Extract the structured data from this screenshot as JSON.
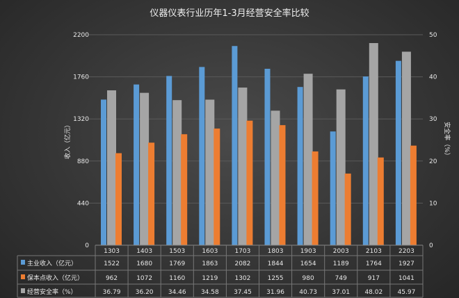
{
  "chart_data": {
    "type": "bar",
    "title": "仪器仪表行业历年1-3月经营安全率比较",
    "categories": [
      "1303",
      "1403",
      "1503",
      "1603",
      "1703",
      "1803",
      "1903",
      "2003",
      "2103",
      "2203"
    ],
    "ylabel": "收入（亿元）",
    "y2label": "安全率（%）",
    "ylim": [
      0,
      2200
    ],
    "y2lim": [
      0,
      50
    ],
    "yticks": [
      0,
      440,
      880,
      1320,
      1760,
      2200
    ],
    "y2ticks": [
      0,
      10,
      20,
      30,
      40,
      50
    ],
    "grid": true,
    "legend": "data-table-bottom",
    "series": [
      {
        "name": "主业收入（亿元）",
        "axis": "left",
        "color": "#5b9bd5",
        "values": [
          1522,
          1680,
          1769,
          1863,
          2082,
          1844,
          1654,
          1189,
          1764,
          1927
        ],
        "labels": [
          "1522",
          "1680",
          "1769",
          "1863",
          "2082",
          "1844",
          "1654",
          "1189",
          "1764",
          "1927"
        ]
      },
      {
        "name": "经营安全率（%）",
        "axis": "right",
        "color": "#a5a5a5",
        "values": [
          36.79,
          36.2,
          34.46,
          34.58,
          37.45,
          31.96,
          40.73,
          37.01,
          48.02,
          45.97
        ],
        "labels": [
          "36.79",
          "36.20",
          "34.46",
          "34.58",
          "37.45",
          "31.96",
          "40.73",
          "37.01",
          "48.02",
          "45.97"
        ]
      },
      {
        "name": "保本点收入（亿元）",
        "axis": "left",
        "color": "#ed7d31",
        "values": [
          962,
          1072,
          1160,
          1219,
          1302,
          1255,
          980,
          749,
          917,
          1041
        ],
        "labels": [
          "962",
          "1072",
          "1160",
          "1219",
          "1302",
          "1255",
          "980",
          "749",
          "917",
          "1041"
        ]
      }
    ],
    "table_order": [
      0,
      2,
      1
    ]
  }
}
